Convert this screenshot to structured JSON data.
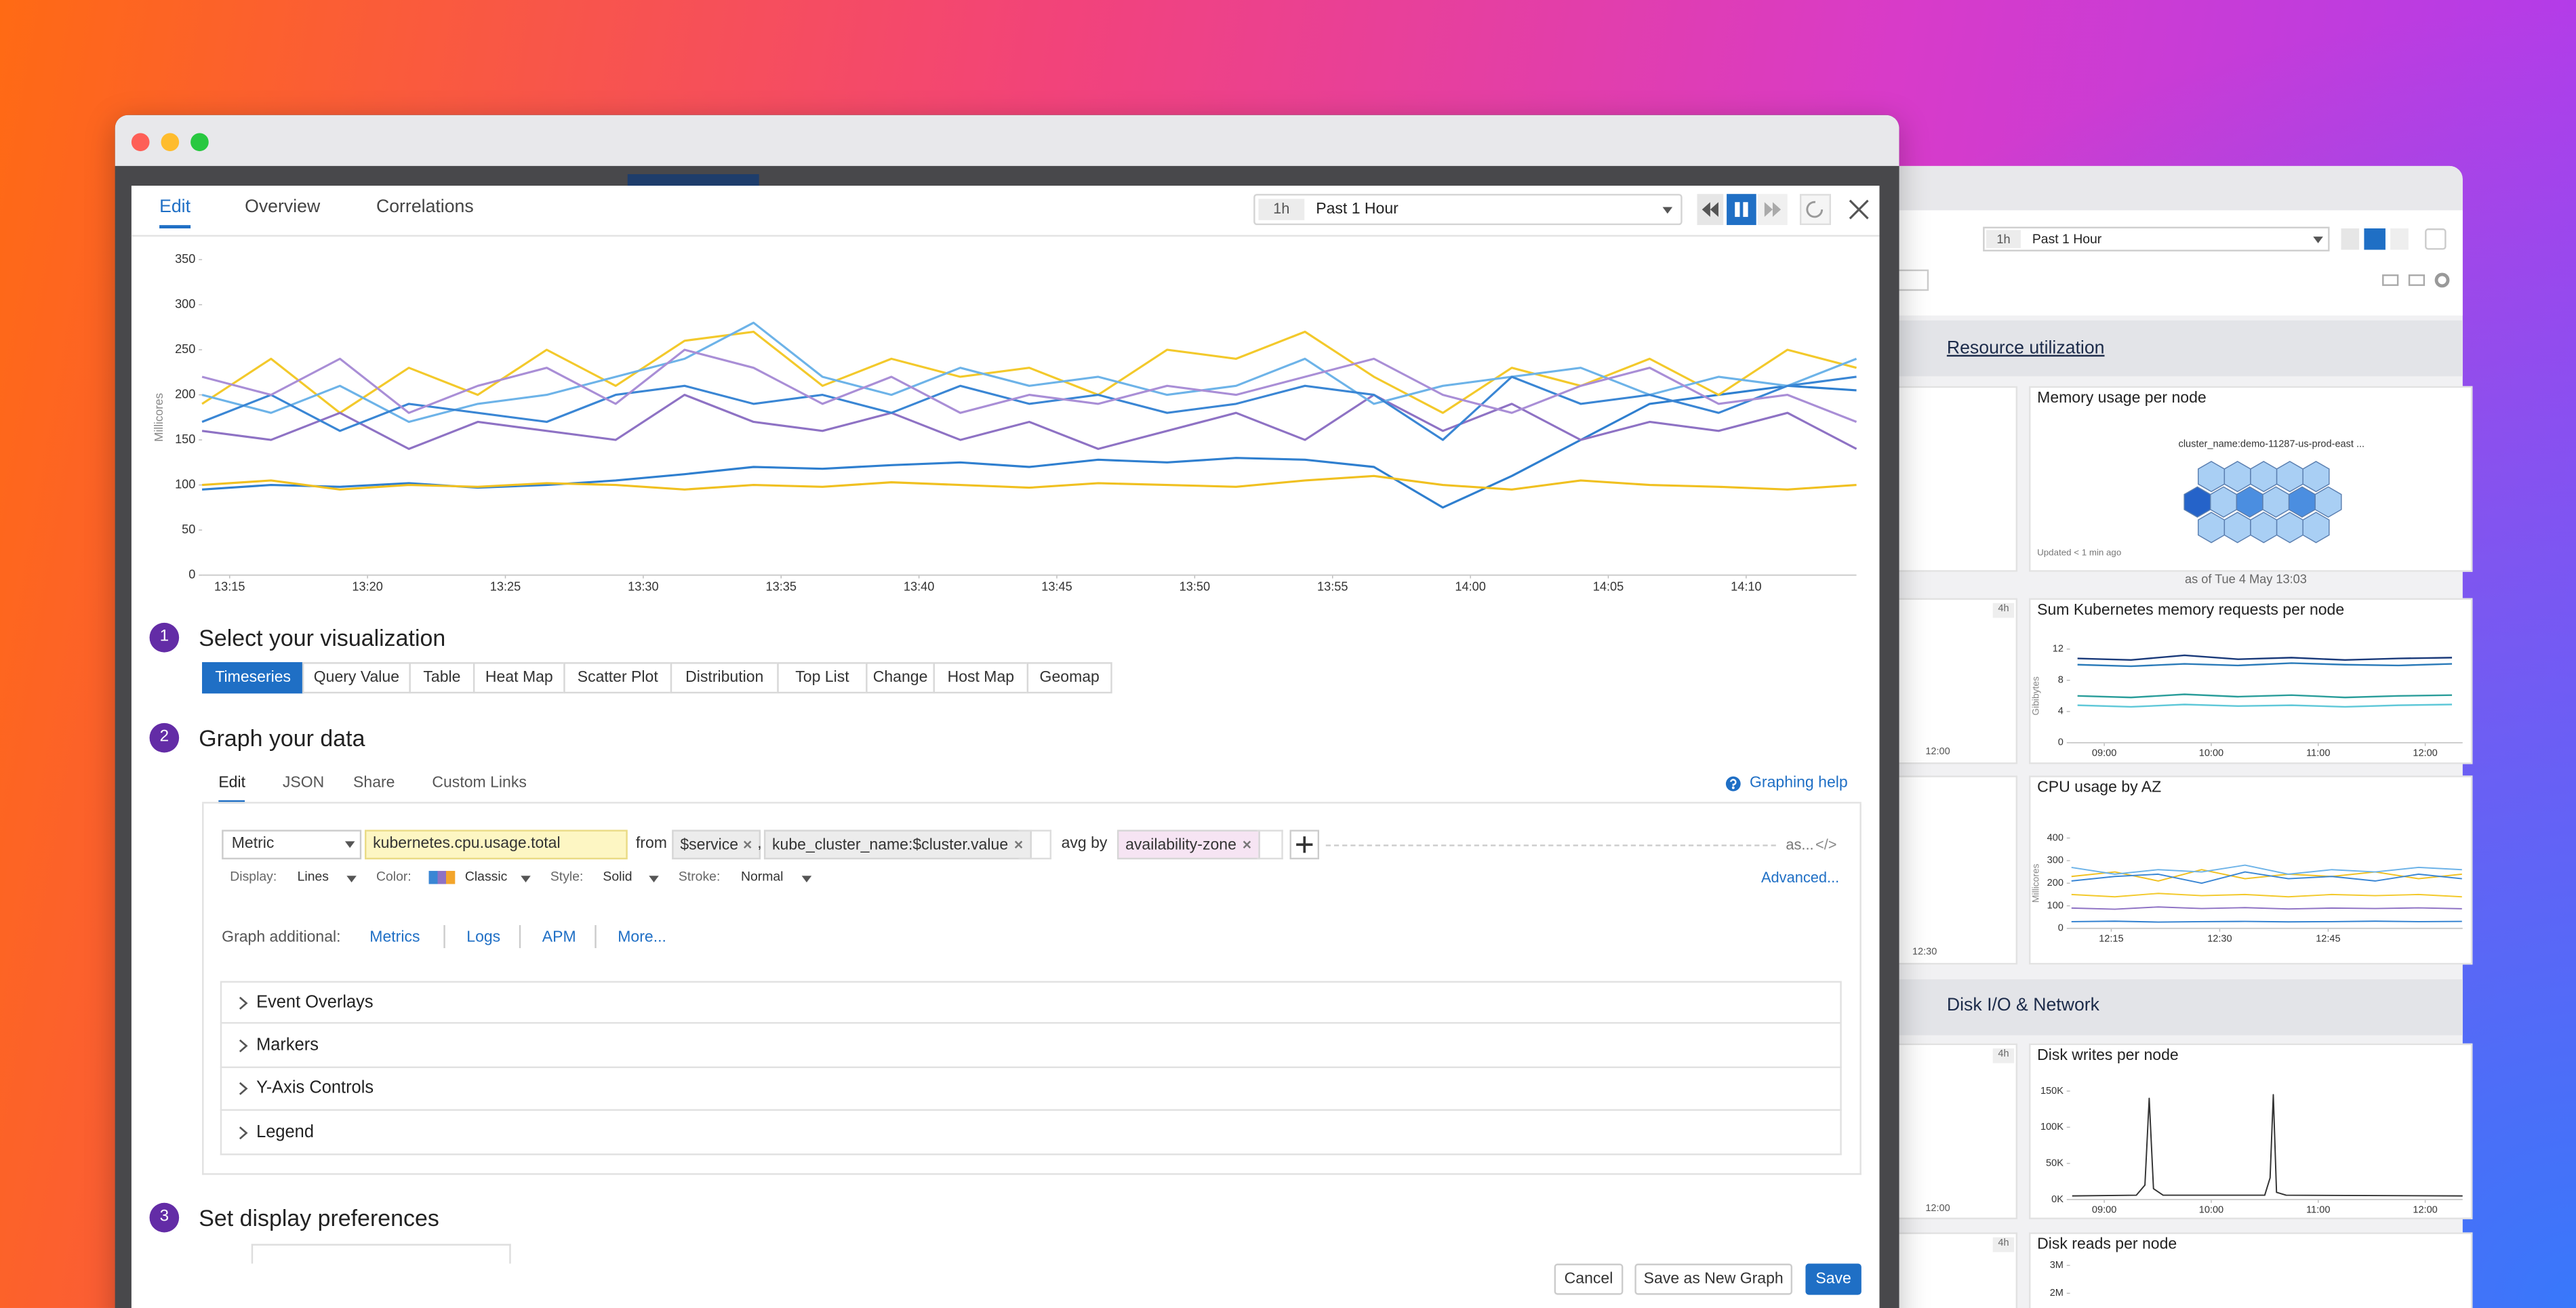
{
  "dashboard": {
    "time_badge": "1h",
    "time_label": "Past 1 Hour",
    "sections": [
      "Resource utilization",
      "Disk I/O & Network"
    ],
    "hostmap": {
      "title": "Memory usage per node",
      "group": "cluster_name:demo-11287-us-prod-east ...",
      "updated": "Updated < 1 min ago",
      "as_of": "as of Tue 4 May 13:03"
    },
    "side_panels": [
      {
        "badge": "4h",
        "x_label": "12:00"
      },
      {
        "x_label": "12:30"
      },
      {
        "badge": "4h",
        "x_label": "12:00"
      },
      {
        "badge": "4h"
      }
    ]
  },
  "editor": {
    "tabs": [
      "Edit",
      "Overview",
      "Correlations"
    ],
    "active_tab": 0,
    "time_badge": "1h",
    "time_label": "Past 1 Hour",
    "steps": [
      {
        "number": 1,
        "title": "Select your visualization"
      },
      {
        "number": 2,
        "title": "Graph your data"
      },
      {
        "number": 3,
        "title": "Set display preferences"
      }
    ],
    "visualizations": [
      "Timeseries",
      "Query Value",
      "Table",
      "Heat Map",
      "Scatter Plot",
      "Distribution",
      "Top List",
      "Change",
      "Host Map",
      "Geomap"
    ],
    "selected_visualization": 0,
    "data_tabs": [
      "Edit",
      "JSON",
      "Share",
      "Custom Links"
    ],
    "active_data_tab": 0,
    "help": "Graphing help",
    "query": {
      "source": "Metric",
      "metric": "kubernetes.cpu.usage.total",
      "from": "from",
      "tags": [
        "$service",
        "kube_cluster_name:$cluster.value"
      ],
      "separator": ",",
      "aggregation": "avg by",
      "groups": [
        "availability-zone"
      ],
      "alias": "as...",
      "code": "</>"
    },
    "style": {
      "display_label": "Display:",
      "display": "Lines",
      "color_label": "Color:",
      "color": "Classic",
      "style_label": "Style:",
      "style": "Solid",
      "stroke_label": "Stroke:",
      "stroke": "Normal",
      "advanced": "Advanced..."
    },
    "additional": {
      "label": "Graph additional:",
      "links": [
        "Metrics",
        "Logs",
        "APM",
        "More..."
      ]
    },
    "sections": [
      "Event Overlays",
      "Markers",
      "Y-Axis Controls",
      "Legend"
    ],
    "buttons": [
      "Cancel",
      "Save as New Graph",
      "Save"
    ]
  },
  "chart_data": [
    {
      "type": "line",
      "y_label": "Millicores",
      "x": [
        14,
        16.5,
        19,
        21.5,
        24,
        26.5,
        29,
        31.5,
        34,
        36.5,
        39,
        41.5,
        44,
        46.5,
        49,
        51.5,
        54,
        56.5,
        59,
        61.5,
        64,
        66.5,
        69,
        71.5,
        74
      ],
      "xlim": [
        14,
        74
      ],
      "xticks": [
        {
          "value": 15,
          "label": "13:15"
        },
        {
          "value": 20,
          "label": "13:20"
        },
        {
          "value": 25,
          "label": "13:25"
        },
        {
          "value": 30,
          "label": "13:30"
        },
        {
          "value": 35,
          "label": "13:35"
        },
        {
          "value": 40,
          "label": "13:40"
        },
        {
          "value": 45,
          "label": "13:45"
        },
        {
          "value": 50,
          "label": "13:50"
        },
        {
          "value": 55,
          "label": "13:55"
        },
        {
          "value": 60,
          "label": "14:00"
        },
        {
          "value": 65,
          "label": "14:05"
        },
        {
          "value": 70,
          "label": "14:10"
        }
      ],
      "ylim": [
        0,
        350
      ],
      "yticks": [
        0,
        50,
        100,
        150,
        200,
        250,
        300,
        350
      ],
      "series": [
        {
          "color": "#2f7fcf",
          "values": [
            95,
            100,
            98,
            102,
            97,
            100,
            105,
            112,
            120,
            118,
            122,
            125,
            120,
            128,
            125,
            130,
            128,
            120,
            75,
            110,
            150,
            190,
            200,
            210,
            205
          ]
        },
        {
          "color": "#f0c020",
          "values": [
            100,
            105,
            95,
            100,
            98,
            102,
            100,
            95,
            100,
            98,
            103,
            100,
            97,
            102,
            100,
            98,
            105,
            110,
            100,
            95,
            105,
            100,
            98,
            95,
            100
          ]
        },
        {
          "color": "#f3c92b",
          "values": [
            190,
            240,
            180,
            230,
            200,
            250,
            210,
            260,
            270,
            210,
            240,
            220,
            230,
            200,
            250,
            240,
            270,
            220,
            180,
            230,
            210,
            240,
            200,
            250,
            230
          ]
        },
        {
          "color": "#8e72c4",
          "values": [
            160,
            150,
            180,
            140,
            170,
            160,
            150,
            200,
            170,
            160,
            180,
            150,
            170,
            140,
            160,
            180,
            150,
            200,
            160,
            190,
            150,
            170,
            160,
            180,
            140
          ]
        },
        {
          "color": "#6db3e8",
          "values": [
            200,
            180,
            210,
            170,
            190,
            200,
            220,
            240,
            280,
            220,
            200,
            230,
            210,
            220,
            200,
            210,
            240,
            190,
            210,
            220,
            230,
            200,
            220,
            210,
            240
          ]
        },
        {
          "color": "#3a86d4",
          "values": [
            170,
            200,
            160,
            190,
            180,
            170,
            200,
            210,
            190,
            200,
            180,
            210,
            190,
            200,
            180,
            190,
            210,
            200,
            150,
            220,
            190,
            200,
            180,
            210,
            220
          ]
        },
        {
          "color": "#a98ed6",
          "values": [
            220,
            200,
            240,
            180,
            210,
            230,
            190,
            250,
            230,
            190,
            220,
            180,
            200,
            190,
            210,
            200,
            220,
            240,
            200,
            180,
            210,
            230,
            190,
            200,
            170
          ]
        }
      ]
    },
    {
      "type": "line",
      "title": "Sum Kubernetes memory requests per node",
      "y_label": "Gibibytes",
      "x": [
        8.75,
        9.25,
        9.75,
        10.25,
        10.75,
        11.25,
        11.75,
        12.25
      ],
      "xlim": [
        8.68,
        12.35
      ],
      "xticks": [
        {
          "value": 9,
          "label": "09:00"
        },
        {
          "value": 10,
          "label": "10:00"
        },
        {
          "value": 11,
          "label": "11:00"
        },
        {
          "value": 12,
          "label": "12:00"
        }
      ],
      "ylim": [
        0,
        12
      ],
      "yticks": [
        0,
        4,
        8,
        12
      ],
      "series": [
        {
          "color": "#1a3a7a",
          "values": [
            10.8,
            10.6,
            11.2,
            10.7,
            10.9,
            10.6,
            10.8,
            10.9
          ]
        },
        {
          "color": "#2b7bb9",
          "values": [
            10.0,
            9.8,
            10.1,
            9.9,
            10.2,
            10.0,
            9.9,
            10.1
          ]
        },
        {
          "color": "#2a9d9a",
          "values": [
            6.0,
            5.8,
            6.2,
            5.9,
            6.1,
            5.8,
            6.0,
            6.1
          ]
        },
        {
          "color": "#5fc8d8",
          "values": [
            4.8,
            4.6,
            4.9,
            4.7,
            4.8,
            4.6,
            4.8,
            4.9
          ]
        }
      ]
    },
    {
      "type": "line",
      "title": "CPU usage by AZ",
      "y_label": "Millicores",
      "x": [
        9.5,
        15.5,
        21.5,
        27.5,
        33.5,
        39.5,
        45.5,
        51.5,
        57.5,
        63.5
      ],
      "xlim": [
        9.3,
        63.6
      ],
      "xticks": [
        {
          "value": 15,
          "label": "12:15"
        },
        {
          "value": 30,
          "label": "12:30"
        },
        {
          "value": 45,
          "label": "12:45"
        }
      ],
      "ylim": [
        0,
        400
      ],
      "yticks": [
        0,
        100,
        200,
        300,
        400
      ],
      "series": [
        {
          "color": "#f0c020",
          "values": [
            230,
            250,
            210,
            260,
            220,
            240,
            230,
            250,
            220,
            240
          ]
        },
        {
          "color": "#3a86d4",
          "values": [
            210,
            230,
            240,
            200,
            250,
            220,
            230,
            210,
            240,
            220
          ]
        },
        {
          "color": "#6db3e8",
          "values": [
            270,
            240,
            260,
            250,
            280,
            240,
            260,
            250,
            270,
            260
          ]
        },
        {
          "color": "#f3c92b",
          "values": [
            150,
            140,
            155,
            145,
            150,
            140,
            150,
            145,
            150,
            140
          ]
        },
        {
          "color": "#8e72c4",
          "values": [
            90,
            85,
            95,
            88,
            92,
            86,
            90,
            88,
            91,
            87
          ]
        },
        {
          "color": "#2f7fcf",
          "values": [
            30,
            32,
            28,
            30,
            31,
            29,
            30,
            32,
            30,
            31
          ]
        }
      ]
    },
    {
      "type": "line",
      "title": "Disk writes per node",
      "x": [
        8.7,
        9.3,
        9.38,
        9.42,
        9.46,
        9.55,
        10.5,
        10.55,
        10.58,
        10.61,
        10.7,
        12.35
      ],
      "xlim": [
        8.68,
        12.35
      ],
      "xticks": [
        {
          "value": 9,
          "label": "09:00"
        },
        {
          "value": 10,
          "label": "10:00"
        },
        {
          "value": 11,
          "label": "11:00"
        },
        {
          "value": 12,
          "label": "12:00"
        }
      ],
      "ylim": [
        0,
        150000
      ],
      "yticks": [
        {
          "value": 0,
          "label": "0K"
        },
        {
          "value": 50000,
          "label": "50K"
        },
        {
          "value": 100000,
          "label": "100K"
        },
        {
          "value": 150000,
          "label": "150K"
        }
      ],
      "series": [
        {
          "color": "#333333",
          "values": [
            5000,
            6000,
            20000,
            140000,
            15000,
            6000,
            6000,
            30000,
            145000,
            10000,
            6000,
            5000
          ]
        }
      ]
    },
    {
      "type": "line",
      "title": "Disk reads per node",
      "ylim": [
        0,
        3300000
      ],
      "yticks": [
        {
          "value": 2000000,
          "label": "2M"
        },
        {
          "value": 3000000,
          "label": "3M"
        }
      ]
    }
  ]
}
